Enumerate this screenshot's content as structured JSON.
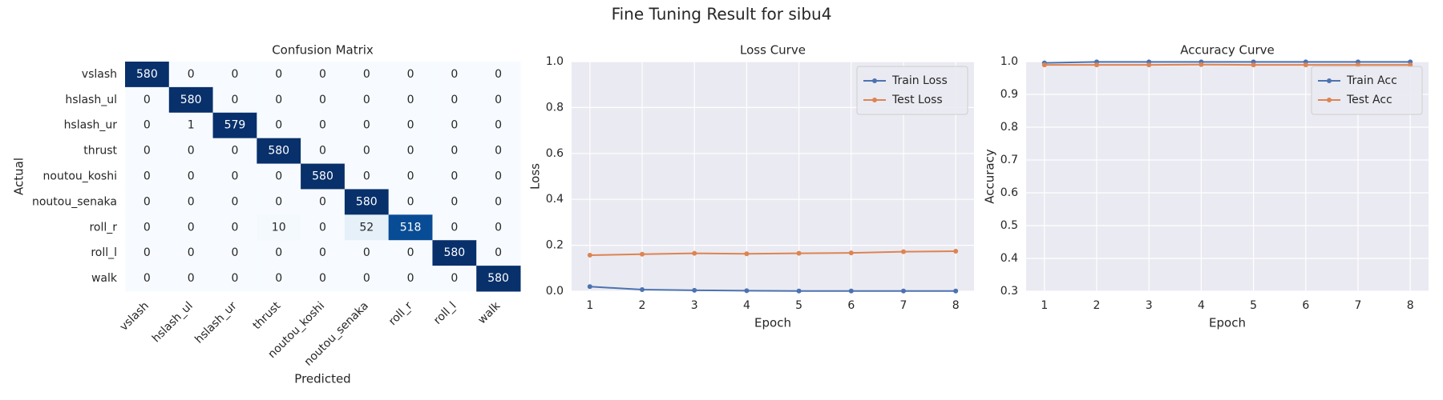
{
  "title": "Fine Tuning Result for sibu4",
  "chart_data": [
    {
      "type": "heatmap",
      "title": "Confusion Matrix",
      "xlabel": "Predicted",
      "ylabel": "Actual",
      "x_categories": [
        "vslash",
        "hslash_ul",
        "hslash_ur",
        "thrust",
        "noutou_koshi",
        "noutou_senaka",
        "roll_r",
        "roll_l",
        "walk"
      ],
      "y_categories": [
        "vslash",
        "hslash_ul",
        "hslash_ur",
        "thrust",
        "noutou_koshi",
        "noutou_senaka",
        "roll_r",
        "roll_l",
        "walk"
      ],
      "values": [
        [
          580,
          0,
          0,
          0,
          0,
          0,
          0,
          0,
          0
        ],
        [
          0,
          580,
          0,
          0,
          0,
          0,
          0,
          0,
          0
        ],
        [
          0,
          1,
          579,
          0,
          0,
          0,
          0,
          0,
          0
        ],
        [
          0,
          0,
          0,
          580,
          0,
          0,
          0,
          0,
          0
        ],
        [
          0,
          0,
          0,
          0,
          580,
          0,
          0,
          0,
          0
        ],
        [
          0,
          0,
          0,
          0,
          0,
          580,
          0,
          0,
          0
        ],
        [
          0,
          0,
          0,
          10,
          0,
          52,
          518,
          0,
          0
        ],
        [
          0,
          0,
          0,
          0,
          0,
          0,
          0,
          580,
          0
        ],
        [
          0,
          0,
          0,
          0,
          0,
          0,
          0,
          0,
          580
        ]
      ],
      "colormap": [
        "#f7fbff",
        "#deebf7",
        "#c6dbef",
        "#9ecae1",
        "#6baed6",
        "#4292c6",
        "#2171b5",
        "#08519c",
        "#08306b"
      ]
    },
    {
      "type": "line",
      "title": "Loss Curve",
      "xlabel": "Epoch",
      "ylabel": "Loss",
      "x": [
        1,
        2,
        3,
        4,
        5,
        6,
        7,
        8
      ],
      "series": [
        {
          "name": "Train Loss",
          "color": "#4c72b0",
          "values": [
            0.02,
            0.007,
            0.004,
            0.002,
            0.001,
            0.001,
            0.001,
            0.001
          ]
        },
        {
          "name": "Test Loss",
          "color": "#dd8452",
          "values": [
            0.157,
            0.161,
            0.165,
            0.163,
            0.165,
            0.167,
            0.172,
            0.174
          ]
        }
      ],
      "xlim": [
        0.65,
        8.35
      ],
      "xticks": [
        1,
        2,
        3,
        4,
        5,
        6,
        7,
        8
      ],
      "ylim": [
        0,
        1
      ],
      "yticks": [
        {
          "value": 0,
          "label": "0.0"
        },
        0.2,
        0.4,
        0.6,
        0.8,
        {
          "value": 1,
          "label": "1.0"
        }
      ],
      "grid": true,
      "legend": "upper right"
    },
    {
      "type": "line",
      "title": "Accuracy Curve",
      "xlabel": "Epoch",
      "ylabel": "Accuracy",
      "x": [
        1,
        2,
        3,
        4,
        5,
        6,
        7,
        8
      ],
      "series": [
        {
          "name": "Train Acc",
          "color": "#4c72b0",
          "values": [
            0.996,
            0.999,
            0.999,
            0.999,
            0.999,
            0.999,
            0.999,
            0.999
          ]
        },
        {
          "name": "Test Acc",
          "color": "#dd8452",
          "values": [
            0.99,
            0.99,
            0.99,
            0.991,
            0.99,
            0.99,
            0.99,
            0.99
          ]
        }
      ],
      "xlim": [
        0.65,
        8.35
      ],
      "xticks": [
        1,
        2,
        3,
        4,
        5,
        6,
        7,
        8
      ],
      "ylim": [
        0.3,
        1
      ],
      "yticks": [
        0.3,
        0.4,
        0.5,
        0.6,
        0.7,
        0.8,
        0.9,
        {
          "value": 1,
          "label": "1.0"
        }
      ],
      "grid": true,
      "legend": "upper right"
    }
  ]
}
